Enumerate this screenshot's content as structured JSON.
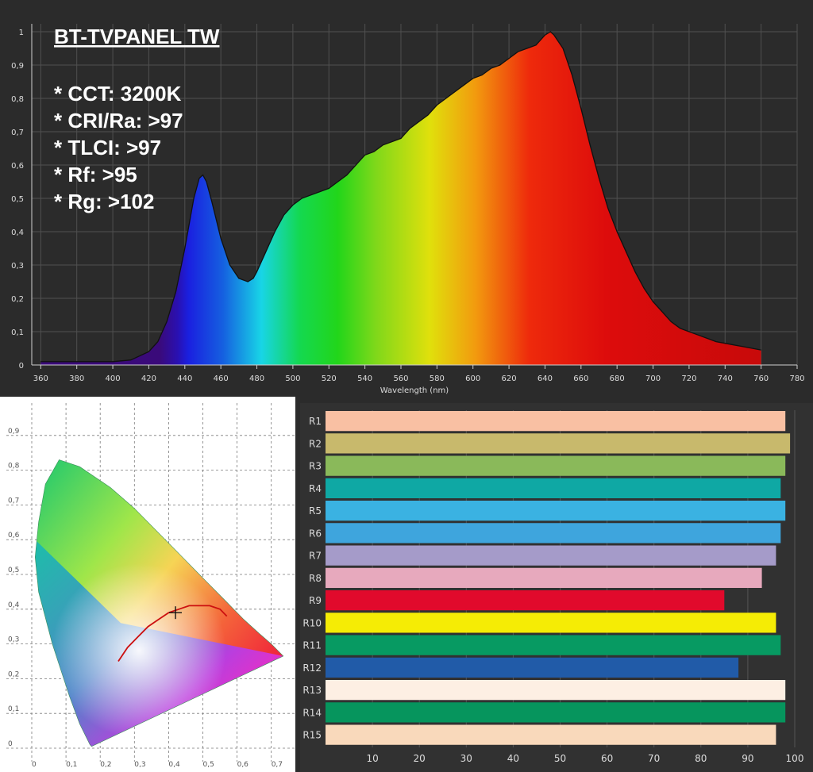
{
  "chart_data": [
    {
      "type": "area",
      "title": "BT-TVPANEL TW",
      "annotations": [
        "* CCT: 3200K",
        "* CRI/Ra: >97",
        "* TLCI: >97",
        "* Rf: >95",
        "* Rg: >102"
      ],
      "xlabel": "Wavelength (nm)",
      "ylabel": "",
      "xlim": [
        355,
        780
      ],
      "ylim": [
        0,
        1
      ],
      "x_ticks": [
        360,
        380,
        400,
        420,
        440,
        460,
        480,
        500,
        520,
        540,
        560,
        580,
        600,
        620,
        640,
        660,
        680,
        700,
        720,
        740,
        760,
        780
      ],
      "y_ticks": [
        "0",
        "0,1",
        "0,2",
        "0,3",
        "0,4",
        "0,5",
        "0,6",
        "0,7",
        "0,8",
        "0,9",
        "1"
      ],
      "grid": true,
      "x": [
        360,
        380,
        400,
        410,
        420,
        425,
        430,
        435,
        440,
        445,
        448,
        450,
        452,
        455,
        460,
        465,
        470,
        475,
        478,
        480,
        485,
        490,
        495,
        500,
        505,
        510,
        515,
        520,
        525,
        530,
        535,
        540,
        545,
        550,
        555,
        560,
        565,
        570,
        575,
        580,
        585,
        590,
        595,
        600,
        605,
        610,
        615,
        620,
        625,
        630,
        635,
        640,
        643,
        645,
        650,
        655,
        660,
        665,
        670,
        675,
        680,
        685,
        690,
        695,
        700,
        705,
        710,
        715,
        720,
        725,
        730,
        735,
        740,
        745,
        750,
        755,
        760
      ],
      "y": [
        0.01,
        0.01,
        0.01,
        0.015,
        0.04,
        0.07,
        0.13,
        0.22,
        0.35,
        0.5,
        0.56,
        0.57,
        0.55,
        0.49,
        0.38,
        0.3,
        0.26,
        0.25,
        0.26,
        0.28,
        0.34,
        0.4,
        0.45,
        0.48,
        0.5,
        0.51,
        0.52,
        0.53,
        0.55,
        0.57,
        0.6,
        0.63,
        0.64,
        0.66,
        0.67,
        0.68,
        0.71,
        0.73,
        0.75,
        0.78,
        0.8,
        0.82,
        0.84,
        0.86,
        0.87,
        0.89,
        0.9,
        0.92,
        0.94,
        0.95,
        0.96,
        0.99,
        1.0,
        0.99,
        0.95,
        0.87,
        0.77,
        0.66,
        0.56,
        0.47,
        0.4,
        0.34,
        0.28,
        0.23,
        0.19,
        0.16,
        0.13,
        0.11,
        0.1,
        0.09,
        0.08,
        0.07,
        0.065,
        0.06,
        0.055,
        0.05,
        0.045
      ]
    },
    {
      "type": "scatter",
      "title": "",
      "xlabel": "",
      "ylabel": "",
      "xlim": [
        0,
        0.8
      ],
      "ylim": [
        0,
        0.95
      ],
      "x_ticks": [
        "0",
        "0,1",
        "0,2",
        "0,3",
        "0,4",
        "0,5",
        "0,6",
        "0,7"
      ],
      "y_ticks": [
        "0",
        "0,1",
        "0,2",
        "0,3",
        "0,4",
        "0,5",
        "0,6",
        "0,7",
        "0,8",
        "0,9"
      ],
      "grid": true,
      "locus": {
        "x": [
          0.175,
          0.17,
          0.16,
          0.14,
          0.11,
          0.06,
          0.02,
          0.01,
          0.02,
          0.04,
          0.08,
          0.14,
          0.23,
          0.3,
          0.37,
          0.44,
          0.51,
          0.57,
          0.62,
          0.665,
          0.7,
          0.735
        ],
        "y": [
          0.005,
          0.01,
          0.03,
          0.07,
          0.15,
          0.3,
          0.45,
          0.55,
          0.65,
          0.76,
          0.83,
          0.81,
          0.75,
          0.69,
          0.62,
          0.55,
          0.48,
          0.42,
          0.37,
          0.33,
          0.3,
          0.265
        ]
      },
      "planckian": {
        "x": [
          0.253,
          0.28,
          0.31,
          0.34,
          0.37,
          0.4,
          0.43,
          0.46,
          0.49,
          0.52,
          0.55,
          0.57
        ],
        "y": [
          0.25,
          0.29,
          0.32,
          0.35,
          0.37,
          0.39,
          0.4,
          0.41,
          0.41,
          0.41,
          0.4,
          0.38
        ]
      },
      "point": {
        "x": 0.42,
        "y": 0.39
      }
    },
    {
      "type": "bar",
      "orientation": "horizontal",
      "title": "",
      "xlabel": "",
      "ylabel": "",
      "xlim": [
        0,
        100
      ],
      "x_ticks": [
        10,
        20,
        30,
        40,
        50,
        60,
        70,
        80,
        90,
        100
      ],
      "categories": [
        "R1",
        "R2",
        "R3",
        "R4",
        "R5",
        "R6",
        "R7",
        "R8",
        "R9",
        "R10",
        "R11",
        "R12",
        "R13",
        "R14",
        "R15"
      ],
      "values": [
        98,
        99,
        98,
        97,
        98,
        97,
        96,
        93,
        85,
        96,
        97,
        88,
        98,
        98,
        96
      ],
      "colors": [
        "#f9c0a3",
        "#c8b96c",
        "#8ab95a",
        "#0fa8a4",
        "#3ab2e2",
        "#3ea5dd",
        "#a59bc9",
        "#e7a9bd",
        "#e10a2c",
        "#f5ec05",
        "#079a62",
        "#215ba8",
        "#fdefe3",
        "#06955d",
        "#f9d9bb"
      ]
    }
  ]
}
